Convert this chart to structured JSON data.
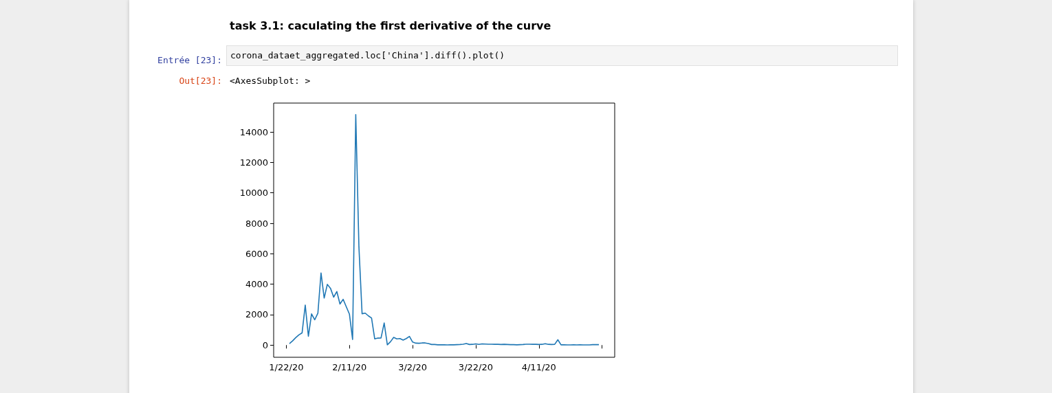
{
  "chart_data": {
    "type": "line",
    "title": "task 3.1: caculating the first derivative of the curve",
    "annotations": [
      "Entrée [23]:",
      "corona_dataet_aggregated.loc['China'].diff().plot()",
      "Out[23]:",
      "<AxesSubplot: >"
    ],
    "x": [
      "2020-01-23",
      "2020-01-24",
      "2020-01-25",
      "2020-01-26",
      "2020-01-27",
      "2020-01-28",
      "2020-01-29",
      "2020-01-30",
      "2020-01-31",
      "2020-02-01",
      "2020-02-02",
      "2020-02-03",
      "2020-02-04",
      "2020-02-05",
      "2020-02-06",
      "2020-02-07",
      "2020-02-08",
      "2020-02-09",
      "2020-02-10",
      "2020-02-11",
      "2020-02-12",
      "2020-02-13",
      "2020-02-14",
      "2020-02-15",
      "2020-02-16",
      "2020-02-17",
      "2020-02-18",
      "2020-02-19",
      "2020-02-20",
      "2020-02-21",
      "2020-02-22",
      "2020-02-23",
      "2020-02-24",
      "2020-02-25",
      "2020-02-26",
      "2020-02-27",
      "2020-02-28",
      "2020-02-29",
      "2020-03-01",
      "2020-03-02",
      "2020-03-03",
      "2020-03-04",
      "2020-03-05",
      "2020-03-06",
      "2020-03-07",
      "2020-03-08",
      "2020-03-09",
      "2020-03-10",
      "2020-03-11",
      "2020-03-12",
      "2020-03-13",
      "2020-03-14",
      "2020-03-15",
      "2020-03-16",
      "2020-03-17",
      "2020-03-18",
      "2020-03-19",
      "2020-03-20",
      "2020-03-21",
      "2020-03-22",
      "2020-03-23",
      "2020-03-24",
      "2020-03-25",
      "2020-03-26",
      "2020-03-27",
      "2020-03-28",
      "2020-03-29",
      "2020-03-30",
      "2020-03-31",
      "2020-04-01",
      "2020-04-02",
      "2020-04-03",
      "2020-04-04",
      "2020-04-05",
      "2020-04-06",
      "2020-04-07",
      "2020-04-08",
      "2020-04-09",
      "2020-04-10",
      "2020-04-11",
      "2020-04-12",
      "2020-04-13",
      "2020-04-14",
      "2020-04-15",
      "2020-04-16",
      "2020-04-17",
      "2020-04-18",
      "2020-04-19",
      "2020-04-20",
      "2020-04-21",
      "2020-04-22",
      "2020-04-23",
      "2020-04-24",
      "2020-04-25",
      "2020-04-26",
      "2020-04-27",
      "2020-04-28",
      "2020-04-29",
      "2020-04-30"
    ],
    "series": [
      {
        "color": "#1f77b4",
        "values": [
          100,
          280,
          490,
          670,
          800,
          2630,
          580,
          2050,
          1660,
          2090,
          4740,
          3090,
          3990,
          3730,
          3150,
          3520,
          2700,
          3010,
          2520,
          2030,
          370,
          15140,
          6460,
          2060,
          2100,
          1920,
          1780,
          410,
          460,
          470,
          1450,
          20,
          220,
          510,
          410,
          430,
          330,
          430,
          570,
          200,
          130,
          120,
          140,
          140,
          100,
          40,
          40,
          20,
          20,
          20,
          10,
          20,
          20,
          30,
          40,
          60,
          100,
          40,
          50,
          80,
          50,
          80,
          70,
          60,
          60,
          50,
          50,
          40,
          50,
          40,
          30,
          30,
          20,
          30,
          40,
          60,
          60,
          50,
          50,
          40,
          50,
          90,
          50,
          40,
          50,
          350,
          20,
          20,
          10,
          10,
          20,
          10,
          20,
          10,
          10,
          10,
          30,
          30,
          30
        ]
      }
    ],
    "xlim": [
      "2020-01-18",
      "2020-05-05"
    ],
    "xticks": [
      {
        "value": "2020-01-22",
        "label": "1/22/20"
      },
      {
        "value": "2020-02-11",
        "label": "2/11/20"
      },
      {
        "value": "2020-03-02",
        "label": "3/2/20"
      },
      {
        "value": "2020-03-22",
        "label": "3/22/20"
      },
      {
        "value": "2020-04-11",
        "label": "4/11/20"
      },
      {
        "value": "2020-05-01",
        "label": null
      }
    ],
    "ylim": [
      -800,
      15900
    ],
    "yticks": [
      0,
      2000,
      4000,
      6000,
      8000,
      10000,
      12000,
      14000
    ],
    "grid": false,
    "marker": "none",
    "line_style": "solid"
  }
}
